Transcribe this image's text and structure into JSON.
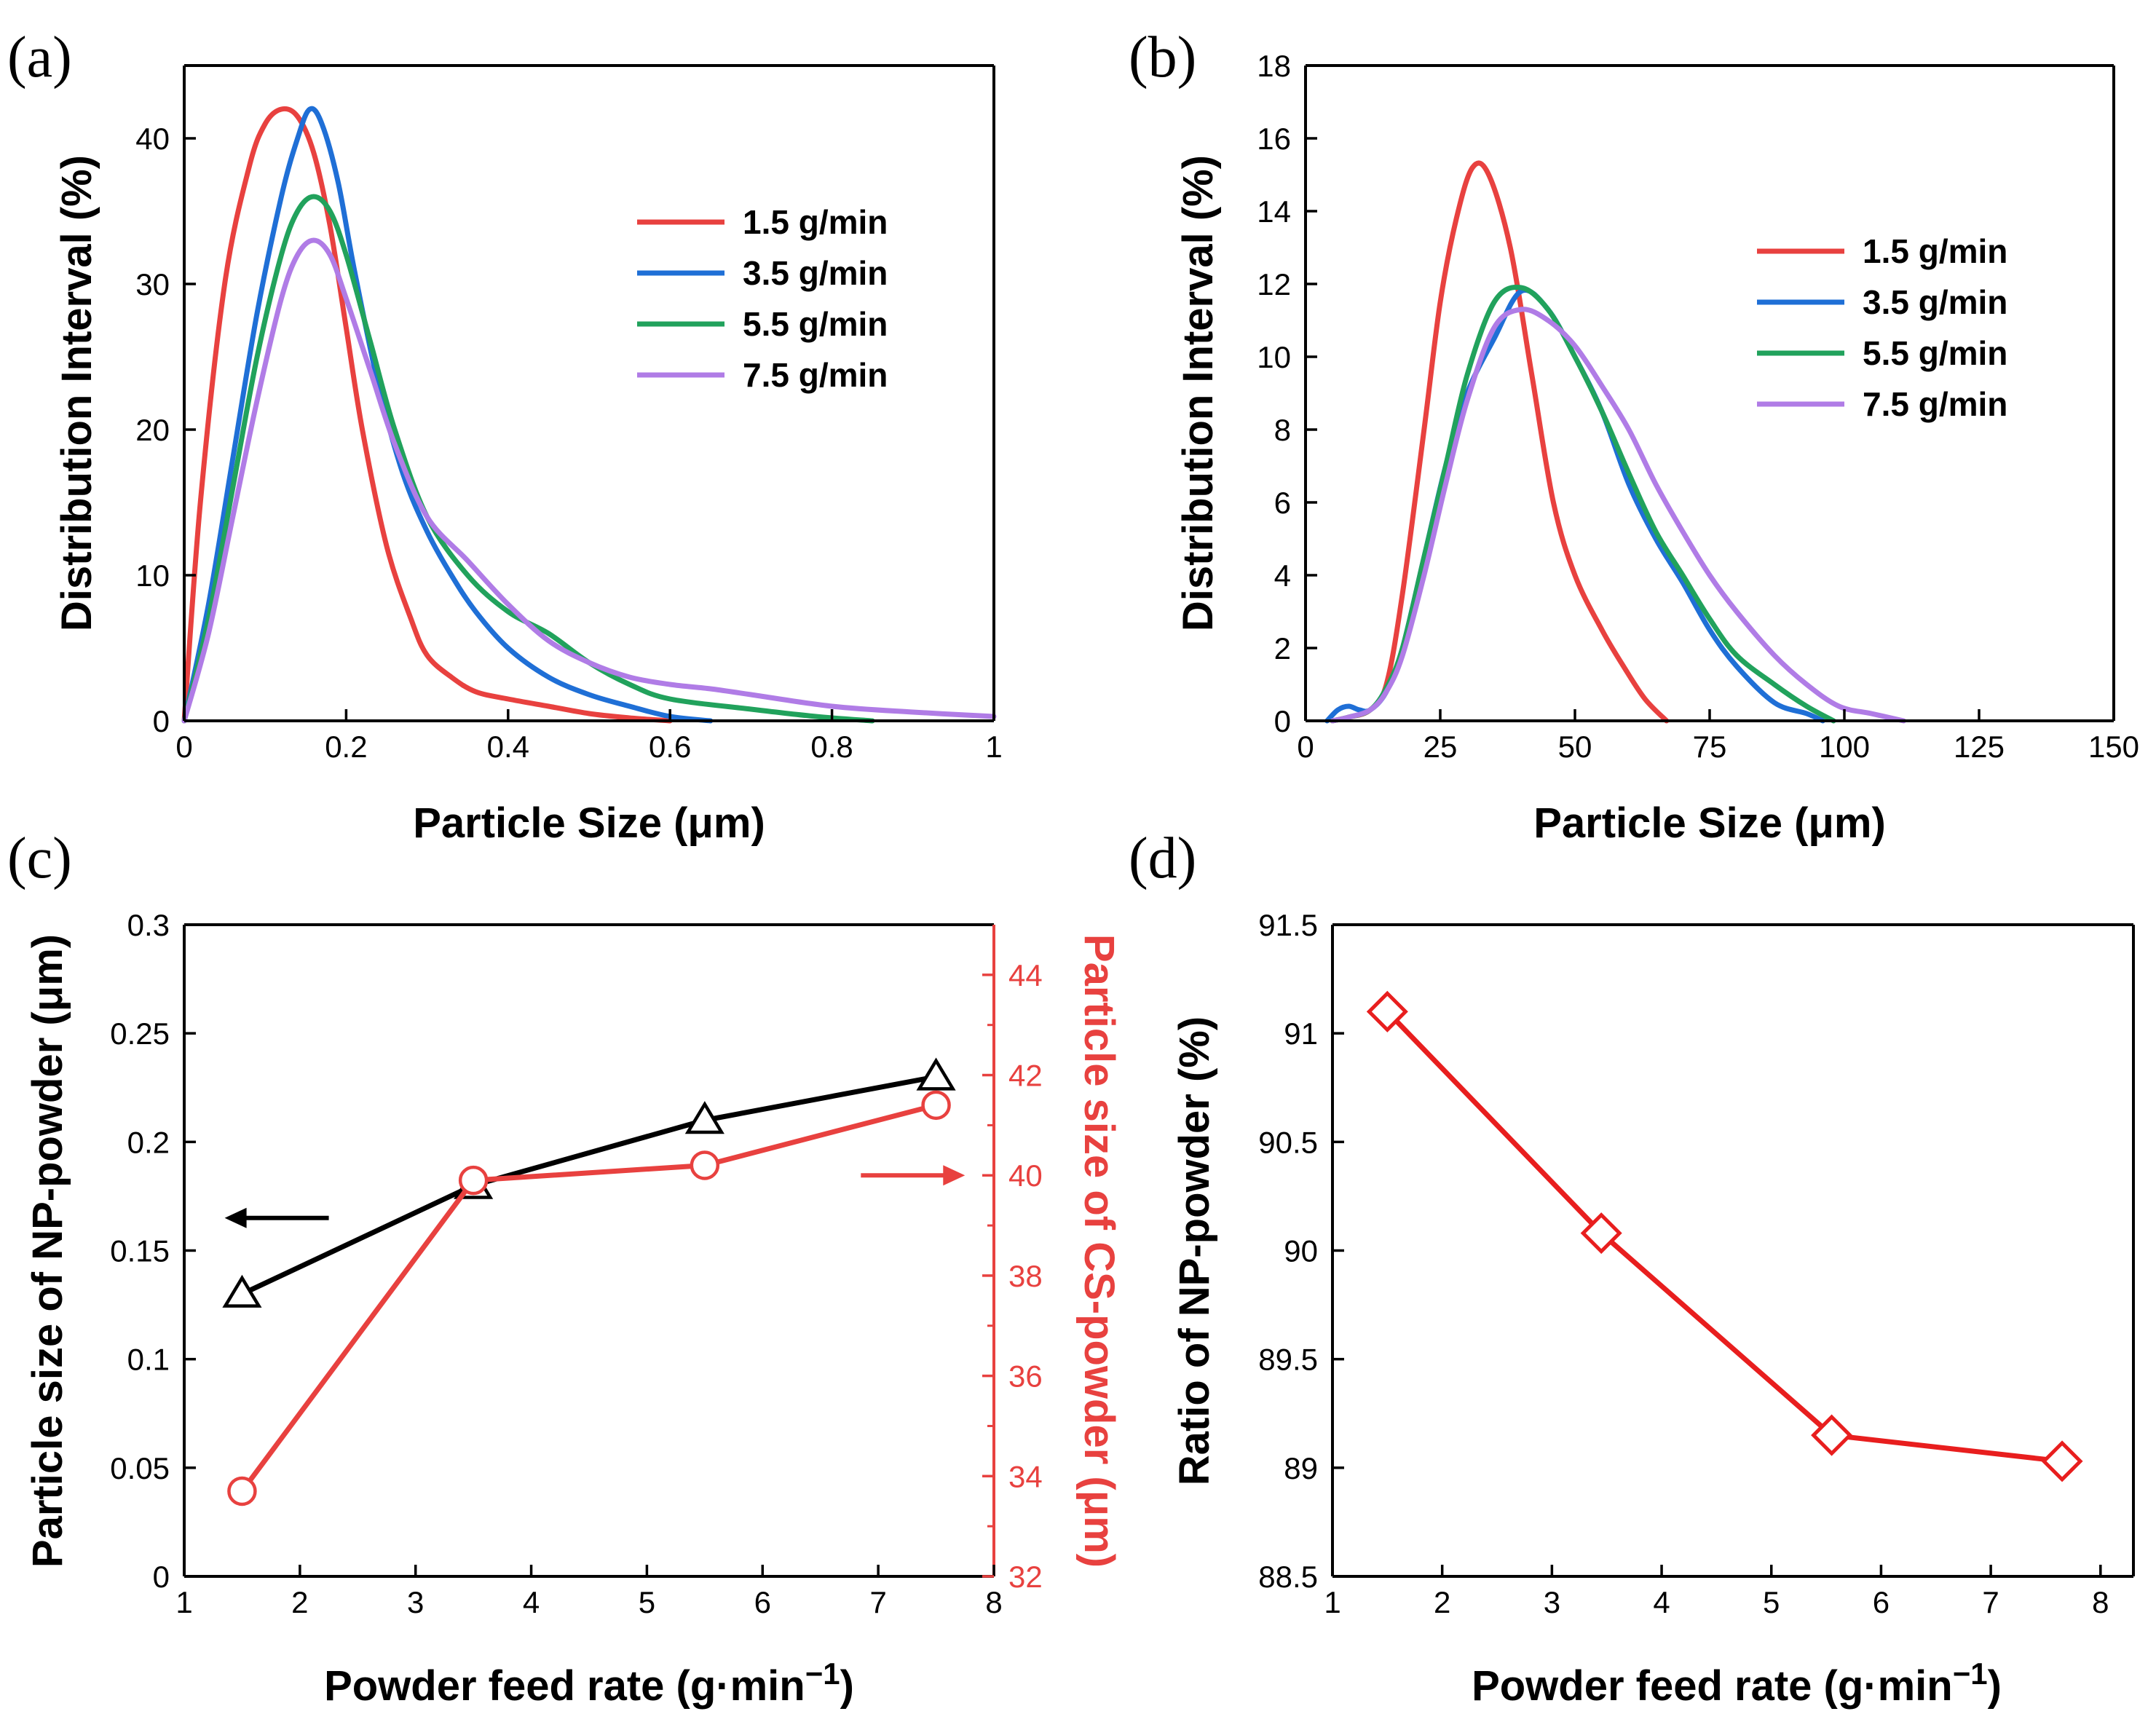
{
  "colors": {
    "red": "#e8413f",
    "blue": "#1f6fd6",
    "green": "#21a25c",
    "purple": "#b07ce6",
    "black": "#000000",
    "red_axis": "#e8413f",
    "diamond": "#e81e1e"
  },
  "chart_data": [
    {
      "panel": "(a)",
      "type": "line",
      "title": "",
      "xlabel": "Particle Size (μm)",
      "ylabel": "Distribution Interval (%)",
      "xlim": [
        0,
        1
      ],
      "ylim": [
        0,
        45
      ],
      "xticks": [
        0,
        0.2,
        0.4,
        0.6,
        0.8,
        1
      ],
      "xtick_labels": [
        "0",
        "0.2",
        "0.4",
        "0.6",
        "0.8",
        "1"
      ],
      "yticks": [
        0,
        10,
        20,
        30,
        40
      ],
      "ytick_labels": [
        "0",
        "10",
        "20",
        "30",
        "40"
      ],
      "legend_position": "top-right",
      "series": [
        {
          "name": "1.5 g/min",
          "color": "red",
          "x": [
            0,
            0.02,
            0.05,
            0.08,
            0.1,
            0.12,
            0.14,
            0.16,
            0.18,
            0.2,
            0.22,
            0.25,
            0.28,
            0.3,
            0.33,
            0.36,
            0.4,
            0.45,
            0.5,
            0.55,
            0.6
          ],
          "y": [
            0,
            15,
            30,
            38,
            41,
            42,
            41.5,
            39,
            34,
            27,
            20,
            12,
            7,
            4.5,
            3,
            2,
            1.5,
            1,
            0.5,
            0.2,
            0
          ]
        },
        {
          "name": "3.5 g/min",
          "color": "blue",
          "x": [
            0,
            0.03,
            0.06,
            0.09,
            0.12,
            0.14,
            0.155,
            0.17,
            0.19,
            0.21,
            0.24,
            0.27,
            0.3,
            0.33,
            0.36,
            0.4,
            0.45,
            0.5,
            0.55,
            0.6,
            0.65
          ],
          "y": [
            0,
            8,
            18,
            28,
            36,
            40,
            42,
            41,
            37,
            31,
            23,
            17,
            13,
            10,
            7.5,
            5,
            3,
            1.8,
            1,
            0.3,
            0
          ]
        },
        {
          "name": "5.5 g/min",
          "color": "green",
          "x": [
            0,
            0.03,
            0.06,
            0.09,
            0.12,
            0.14,
            0.16,
            0.18,
            0.2,
            0.23,
            0.26,
            0.3,
            0.35,
            0.4,
            0.45,
            0.5,
            0.55,
            0.6,
            0.7,
            0.78,
            0.85
          ],
          "y": [
            0,
            7,
            16,
            25,
            32,
            35,
            36,
            35,
            32,
            26,
            20,
            14,
            10,
            7.5,
            6,
            4,
            2.5,
            1.5,
            0.8,
            0.3,
            0
          ]
        },
        {
          "name": "7.5 g/min",
          "color": "purple",
          "x": [
            0,
            0.03,
            0.06,
            0.09,
            0.12,
            0.14,
            0.16,
            0.18,
            0.2,
            0.23,
            0.26,
            0.3,
            0.35,
            0.4,
            0.45,
            0.5,
            0.55,
            0.6,
            0.65,
            0.7,
            0.8,
            0.9,
            1.0
          ],
          "y": [
            0,
            6,
            14,
            22,
            29,
            32,
            33,
            32,
            29,
            24,
            19,
            14,
            11,
            8,
            5.5,
            4,
            3,
            2.5,
            2.2,
            1.8,
            1,
            0.6,
            0.3
          ]
        }
      ]
    },
    {
      "panel": "(b)",
      "type": "line",
      "title": "",
      "xlabel": "Particle Size (μm)",
      "ylabel": "Distribution Interval (%)",
      "xlim": [
        0,
        150
      ],
      "ylim": [
        0,
        18
      ],
      "xticks": [
        0,
        25,
        50,
        75,
        100,
        125,
        150
      ],
      "xtick_labels": [
        "0",
        "25",
        "50",
        "75",
        "100",
        "125",
        "150"
      ],
      "yticks": [
        0,
        2,
        4,
        6,
        8,
        10,
        12,
        14,
        16,
        18
      ],
      "ytick_labels": [
        "0",
        "2",
        "4",
        "6",
        "8",
        "10",
        "12",
        "14",
        "16",
        "18"
      ],
      "legend_position": "top-right",
      "series": [
        {
          "name": "1.5 g/min",
          "color": "red",
          "x": [
            5,
            8,
            12,
            15,
            18,
            22,
            25,
            28,
            31,
            34,
            38,
            42,
            46,
            50,
            55,
            59,
            63,
            67
          ],
          "y": [
            0,
            0.1,
            0.3,
            1,
            3.5,
            8,
            11.5,
            13.8,
            15.2,
            15,
            13,
            9.5,
            6,
            4,
            2.5,
            1.5,
            0.6,
            0
          ]
        },
        {
          "name": "3.5 g/min",
          "color": "blue",
          "x": [
            4,
            6,
            8,
            10,
            12,
            15,
            18,
            22,
            26,
            30,
            35,
            40,
            45,
            50,
            55,
            60,
            65,
            70,
            75,
            80,
            87,
            93,
            96
          ],
          "y": [
            0,
            0.3,
            0.4,
            0.3,
            0.3,
            0.8,
            2,
            4.5,
            7,
            9,
            10.5,
            11.8,
            11.3,
            10,
            8.5,
            6.5,
            5,
            3.8,
            2.5,
            1.5,
            0.5,
            0.2,
            0
          ]
        },
        {
          "name": "5.5 g/min",
          "color": "green",
          "x": [
            5,
            8,
            12,
            15,
            18,
            22,
            26,
            30,
            35,
            40,
            45,
            50,
            55,
            60,
            65,
            70,
            75,
            80,
            87,
            93,
            98
          ],
          "y": [
            0,
            0.1,
            0.3,
            0.9,
            2,
            4.5,
            7,
            9.5,
            11.5,
            11.9,
            11.3,
            10,
            8.5,
            6.8,
            5.2,
            4,
            2.8,
            1.8,
            1,
            0.4,
            0
          ]
        },
        {
          "name": "7.5 g/min",
          "color": "purple",
          "x": [
            5,
            8,
            12,
            15,
            18,
            22,
            26,
            30,
            35,
            40,
            45,
            50,
            55,
            60,
            65,
            70,
            75,
            80,
            87,
            93,
            99,
            105,
            111
          ],
          "y": [
            0,
            0.1,
            0.3,
            0.8,
            1.8,
            4,
            6.5,
            8.8,
            10.8,
            11.3,
            11,
            10.3,
            9.2,
            8,
            6.5,
            5.2,
            4,
            3,
            1.8,
            1,
            0.4,
            0.2,
            0
          ]
        }
      ]
    },
    {
      "panel": "(c)",
      "type": "line",
      "title": "",
      "xlabel": "Powder feed rate (g·min",
      "xlabel_sup": "−1",
      "xlabel_close": ")",
      "ylabel": "Particle size of NP-powder (μm)",
      "y2label": "Particle size of CS-powder (μm)",
      "xlim": [
        1,
        8
      ],
      "ylim": [
        0,
        0.3
      ],
      "y2lim": [
        32,
        45
      ],
      "xticks": [
        1,
        2,
        3,
        4,
        5,
        6,
        7,
        8
      ],
      "xtick_labels": [
        "1",
        "2",
        "3",
        "4",
        "5",
        "6",
        "7",
        "8"
      ],
      "yticks": [
        0,
        0.05,
        0.1,
        0.15,
        0.2,
        0.25,
        0.3
      ],
      "ytick_labels": [
        "0",
        "0.05",
        "0.1",
        "0.15",
        "0.2",
        "0.25",
        "0.3"
      ],
      "y2ticks": [
        32,
        34,
        36,
        38,
        40,
        42,
        44
      ],
      "y2tick_labels": [
        "32",
        "34",
        "36",
        "38",
        "40",
        "42",
        "44"
      ],
      "series": [
        {
          "name": "NP-powder",
          "axis": "left",
          "color": "black",
          "marker": "triangle",
          "x": [
            1.5,
            3.5,
            5.5,
            7.5
          ],
          "y": [
            0.13,
            0.18,
            0.21,
            0.23
          ]
        },
        {
          "name": "CS-powder",
          "axis": "right",
          "color": "red",
          "marker": "circle",
          "x": [
            1.5,
            3.5,
            5.5,
            7.5
          ],
          "y": [
            33.7,
            39.9,
            40.2,
            41.4
          ]
        }
      ],
      "arrows": [
        {
          "axis": "left",
          "direction": "left",
          "x_from": 2.25,
          "x_to": 1.35,
          "y": 0.165,
          "color": "black"
        },
        {
          "axis": "right",
          "direction": "right",
          "x_from": 6.85,
          "x_to": 7.75,
          "y": 40,
          "color": "red"
        }
      ]
    },
    {
      "panel": "(d)",
      "type": "line",
      "title": "",
      "xlabel": "Powder feed rate (g·min",
      "xlabel_sup": "−1",
      "xlabel_close": ")",
      "ylabel": "Ratio of NP-powder (%)",
      "xlim": [
        1,
        8.3
      ],
      "ylim": [
        88.5,
        91.5
      ],
      "xticks": [
        1,
        2,
        3,
        4,
        5,
        6,
        7,
        8
      ],
      "xtick_labels": [
        "1",
        "2",
        "3",
        "4",
        "5",
        "6",
        "7",
        "8"
      ],
      "yticks": [
        88.5,
        89,
        89.5,
        90,
        90.5,
        91,
        91.5
      ],
      "ytick_labels": [
        "88.5",
        "89",
        "89.5",
        "90",
        "90.5",
        "91",
        "91.5"
      ],
      "series": [
        {
          "name": "Ratio",
          "color": "diamond",
          "marker": "diamond",
          "x": [
            1.5,
            3.45,
            5.55,
            7.65
          ],
          "y": [
            91.1,
            90.08,
            89.15,
            89.03
          ]
        }
      ]
    }
  ]
}
